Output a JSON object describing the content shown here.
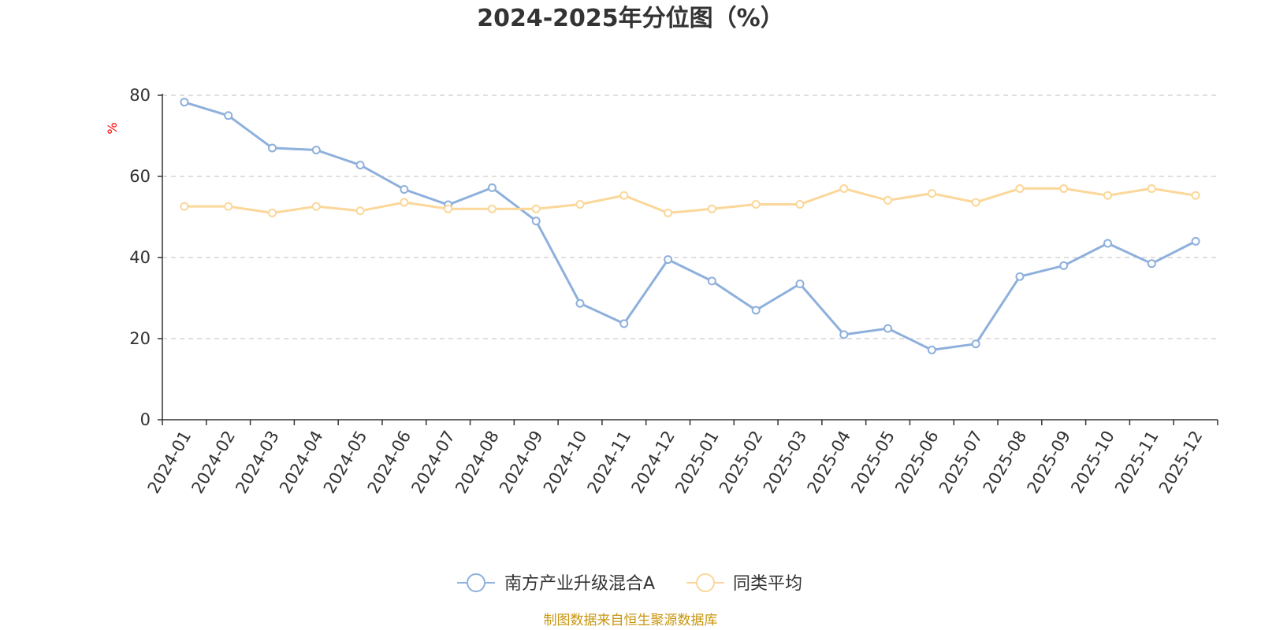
{
  "chart_data": {
    "type": "line",
    "title": "2024-2025年分位图（%）",
    "ylabel": "%",
    "xlabel": "",
    "ylim": [
      0,
      80
    ],
    "yticks": [
      0,
      20,
      40,
      60,
      80
    ],
    "grid": true,
    "legend_position": "bottom-center",
    "categories": [
      "2024-01",
      "2024-02",
      "2024-03",
      "2024-04",
      "2024-05",
      "2024-06",
      "2024-07",
      "2024-08",
      "2024-09",
      "2024-10",
      "2024-11",
      "2024-12",
      "2025-01",
      "2025-02",
      "2025-03",
      "2025-04",
      "2025-05",
      "2025-06",
      "2025-07",
      "2025-08",
      "2025-09",
      "2025-10",
      "2025-11",
      "2025-12"
    ],
    "series": [
      {
        "name": "南方产业升级混合A",
        "color": "#8eb0dc",
        "values": [
          78.3,
          75.0,
          67.0,
          66.5,
          62.8,
          56.8,
          53.0,
          57.2,
          49.0,
          28.7,
          23.7,
          39.5,
          34.2,
          27.0,
          33.5,
          21.0,
          22.5,
          17.2,
          18.7,
          35.3,
          38.0,
          43.5,
          38.5,
          44.0
        ]
      },
      {
        "name": "同类平均",
        "color": "#fbd799",
        "values": [
          52.6,
          52.6,
          51.0,
          52.6,
          51.5,
          53.6,
          52.0,
          52.0,
          52.0,
          53.1,
          55.3,
          51.0,
          52.0,
          53.1,
          53.1,
          57.0,
          54.1,
          55.8,
          53.6,
          57.0,
          57.0,
          55.3,
          57.0,
          55.3
        ]
      }
    ]
  },
  "footer": {
    "source": "制图数据来自恒生聚源数据库",
    "source_color": "#c8950f"
  },
  "ylabel_color": "#ff0000"
}
